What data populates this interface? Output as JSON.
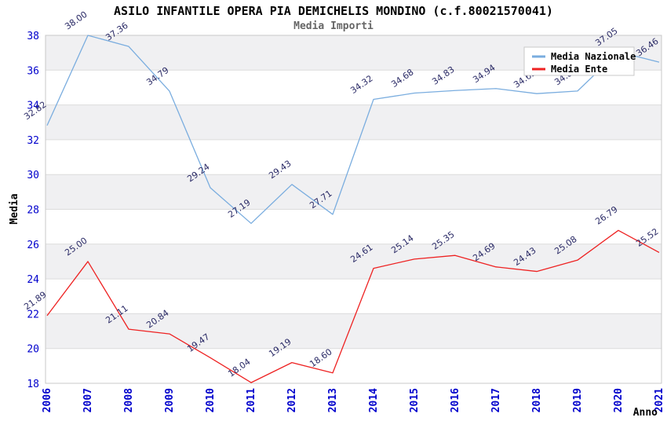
{
  "title": "ASILO INFANTILE OPERA PIA DEMICHELIS MONDINO (c.f.80021570041)",
  "subtitle": "Media Importi",
  "chart_data": {
    "type": "line",
    "x": [
      2006,
      2007,
      2008,
      2009,
      2010,
      2011,
      2012,
      2013,
      2014,
      2015,
      2016,
      2017,
      2018,
      2019,
      2020,
      2021
    ],
    "series": [
      {
        "name": "Media Nazionale",
        "color": "#7aaddf",
        "values": [
          32.82,
          38.0,
          37.36,
          34.79,
          29.24,
          27.19,
          29.43,
          27.71,
          34.32,
          34.68,
          34.83,
          34.94,
          34.65,
          34.8,
          37.05,
          36.46
        ],
        "labels_hidden_by_legend": [
          2018,
          2019
        ]
      },
      {
        "name": "Media Ente",
        "color": "#ee2222",
        "values": [
          21.89,
          25.0,
          21.11,
          20.84,
          19.47,
          18.04,
          19.19,
          18.6,
          24.61,
          25.14,
          25.35,
          24.69,
          24.43,
          25.08,
          26.79,
          25.52
        ]
      }
    ],
    "xlabel": "Anno",
    "ylabel": "Media",
    "ylim": [
      18,
      38
    ],
    "ytick_step": 2,
    "yticks": [
      18,
      20,
      22,
      24,
      26,
      28,
      30,
      32,
      34,
      36,
      38
    ],
    "grid": true,
    "band_fill": "#f0f0f2",
    "gridline_color": "#dcdcdc",
    "plot_border_color": "#c8c8c8",
    "tick_label_color": "#0000cc",
    "data_label_color": "#2a2a66",
    "legend_position": "top-right",
    "legend_entries": [
      "Media Nazionale",
      "Media Ente"
    ]
  }
}
